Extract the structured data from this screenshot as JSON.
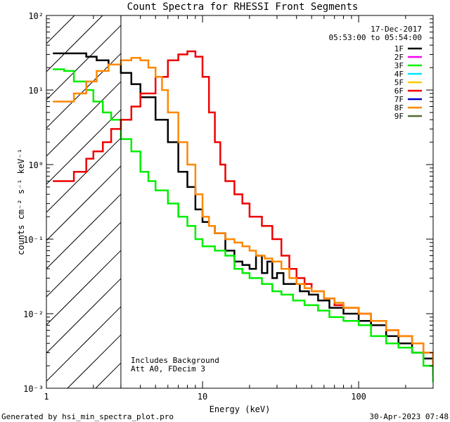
{
  "chart_data": {
    "type": "line",
    "title": "Count Spectra for RHESSI Front Segments",
    "xlabel": "Energy (keV)",
    "ylabel": "counts cm⁻² s⁻¹ keV⁻¹",
    "xscale": "log",
    "yscale": "log",
    "xlim": [
      1,
      300
    ],
    "ylim": [
      0.001,
      100
    ],
    "x_ticks": [
      {
        "value": 1,
        "label": "1"
      },
      {
        "value": 10,
        "label": "10"
      },
      {
        "value": 100,
        "label": "100"
      }
    ],
    "y_ticks": [
      {
        "value": 100,
        "label": "10²"
      },
      {
        "value": 10,
        "label": "10¹"
      },
      {
        "value": 1,
        "label": "10⁰"
      },
      {
        "value": 0.1,
        "label": "10⁻¹"
      },
      {
        "value": 0.01,
        "label": "10⁻²"
      },
      {
        "value": 0.001,
        "label": "10⁻³"
      }
    ],
    "date": "17-Dec-2017",
    "time_range": "05:53:00 to 05:54:00",
    "threshold_energy": 3,
    "annotations": [
      "Includes Background",
      "Att A0, FDecim 3"
    ],
    "legend": [
      {
        "name": "1F",
        "color": "#000000"
      },
      {
        "name": "2F",
        "color": "#ff00ff"
      },
      {
        "name": "3F",
        "color": "#00ee00"
      },
      {
        "name": "4F",
        "color": "#00e5ff"
      },
      {
        "name": "5F",
        "color": "#ffcc00"
      },
      {
        "name": "6F",
        "color": "#ee0000"
      },
      {
        "name": "7F",
        "color": "#0000cc"
      },
      {
        "name": "8F",
        "color": "#ff8800"
      },
      {
        "name": "9F",
        "color": "#556b2f"
      }
    ],
    "series": [
      {
        "name": "1F",
        "color": "#000000",
        "points": [
          [
            1.1,
            31
          ],
          [
            1.5,
            31
          ],
          [
            1.8,
            28
          ],
          [
            2.1,
            25
          ],
          [
            2.5,
            22
          ],
          [
            3,
            17
          ],
          [
            3.5,
            12
          ],
          [
            4,
            8
          ],
          [
            5,
            4
          ],
          [
            6,
            2
          ],
          [
            7,
            0.8
          ],
          [
            8,
            0.5
          ],
          [
            9,
            0.25
          ],
          [
            10,
            0.17
          ],
          [
            11,
            0.15
          ],
          [
            12,
            0.12
          ],
          [
            14,
            0.07
          ],
          [
            16,
            0.05
          ],
          [
            18,
            0.045
          ],
          [
            20,
            0.04
          ],
          [
            22,
            0.06
          ],
          [
            24,
            0.035
          ],
          [
            26,
            0.05
          ],
          [
            28,
            0.03
          ],
          [
            30,
            0.035
          ],
          [
            33,
            0.025
          ],
          [
            37,
            0.025
          ],
          [
            42,
            0.02
          ],
          [
            48,
            0.018
          ],
          [
            55,
            0.015
          ],
          [
            65,
            0.012
          ],
          [
            80,
            0.01
          ],
          [
            100,
            0.008
          ],
          [
            120,
            0.007
          ],
          [
            150,
            0.005
          ],
          [
            180,
            0.004
          ],
          [
            220,
            0.003
          ],
          [
            260,
            0.0025
          ],
          [
            300,
            0.0015
          ]
        ]
      },
      {
        "name": "3F",
        "color": "#00ee00",
        "points": [
          [
            1.1,
            19
          ],
          [
            1.3,
            18
          ],
          [
            1.5,
            13
          ],
          [
            1.8,
            10
          ],
          [
            2,
            7
          ],
          [
            2.3,
            5
          ],
          [
            2.6,
            4
          ],
          [
            3,
            2.2
          ],
          [
            3.5,
            1.5
          ],
          [
            4,
            0.8
          ],
          [
            4.5,
            0.6
          ],
          [
            5,
            0.45
          ],
          [
            6,
            0.3
          ],
          [
            7,
            0.2
          ],
          [
            8,
            0.15
          ],
          [
            9,
            0.1
          ],
          [
            10,
            0.08
          ],
          [
            12,
            0.07
          ],
          [
            14,
            0.06
          ],
          [
            16,
            0.04
          ],
          [
            18,
            0.035
          ],
          [
            20,
            0.03
          ],
          [
            24,
            0.025
          ],
          [
            28,
            0.02
          ],
          [
            32,
            0.018
          ],
          [
            38,
            0.015
          ],
          [
            45,
            0.013
          ],
          [
            55,
            0.011
          ],
          [
            65,
            0.009
          ],
          [
            80,
            0.008
          ],
          [
            100,
            0.007
          ],
          [
            120,
            0.005
          ],
          [
            150,
            0.004
          ],
          [
            180,
            0.0035
          ],
          [
            220,
            0.003
          ],
          [
            260,
            0.002
          ],
          [
            300,
            0.0012
          ]
        ]
      },
      {
        "name": "6F",
        "color": "#ee0000",
        "points": [
          [
            1.1,
            0.6
          ],
          [
            1.3,
            0.6
          ],
          [
            1.5,
            0.8
          ],
          [
            1.8,
            1.2
          ],
          [
            2,
            1.5
          ],
          [
            2.3,
            2
          ],
          [
            2.6,
            3
          ],
          [
            3,
            4
          ],
          [
            3.5,
            6
          ],
          [
            4,
            9
          ],
          [
            5,
            15
          ],
          [
            6,
            25
          ],
          [
            7,
            30
          ],
          [
            8,
            33
          ],
          [
            9,
            28
          ],
          [
            10,
            15
          ],
          [
            11,
            5
          ],
          [
            12,
            2
          ],
          [
            13,
            1
          ],
          [
            14,
            0.6
          ],
          [
            16,
            0.4
          ],
          [
            18,
            0.3
          ],
          [
            20,
            0.2
          ],
          [
            24,
            0.15
          ],
          [
            28,
            0.1
          ],
          [
            32,
            0.06
          ],
          [
            36,
            0.04
          ],
          [
            40,
            0.03
          ],
          [
            45,
            0.025
          ],
          [
            50,
            0.02
          ],
          [
            60,
            0.016
          ],
          [
            70,
            0.013
          ],
          [
            80,
            0.012
          ],
          [
            100,
            0.01
          ],
          [
            120,
            0.008
          ],
          [
            150,
            0.006
          ],
          [
            180,
            0.005
          ],
          [
            220,
            0.004
          ],
          [
            260,
            0.003
          ],
          [
            300,
            0.002
          ]
        ]
      },
      {
        "name": "8F",
        "color": "#ff8800",
        "points": [
          [
            1.1,
            7
          ],
          [
            1.3,
            7
          ],
          [
            1.5,
            9
          ],
          [
            1.8,
            13
          ],
          [
            2.1,
            18
          ],
          [
            2.5,
            22
          ],
          [
            3,
            25
          ],
          [
            3.5,
            27
          ],
          [
            4,
            25
          ],
          [
            4.5,
            20
          ],
          [
            5,
            15
          ],
          [
            5.5,
            10
          ],
          [
            6,
            5
          ],
          [
            7,
            2
          ],
          [
            8,
            1
          ],
          [
            9,
            0.4
          ],
          [
            10,
            0.2
          ],
          [
            11,
            0.15
          ],
          [
            12,
            0.12
          ],
          [
            14,
            0.1
          ],
          [
            16,
            0.09
          ],
          [
            18,
            0.08
          ],
          [
            20,
            0.07
          ],
          [
            22,
            0.06
          ],
          [
            25,
            0.055
          ],
          [
            28,
            0.05
          ],
          [
            32,
            0.04
          ],
          [
            36,
            0.03
          ],
          [
            40,
            0.025
          ],
          [
            45,
            0.022
          ],
          [
            50,
            0.02
          ],
          [
            60,
            0.016
          ],
          [
            70,
            0.014
          ],
          [
            80,
            0.012
          ],
          [
            100,
            0.01
          ],
          [
            120,
            0.008
          ],
          [
            150,
            0.006
          ],
          [
            180,
            0.005
          ],
          [
            220,
            0.004
          ],
          [
            260,
            0.003
          ],
          [
            300,
            0.002
          ]
        ]
      }
    ]
  },
  "footer": {
    "left": "Generated by hsi_min_spectra_plot.pro",
    "right": "30-Apr-2023 07:48"
  }
}
